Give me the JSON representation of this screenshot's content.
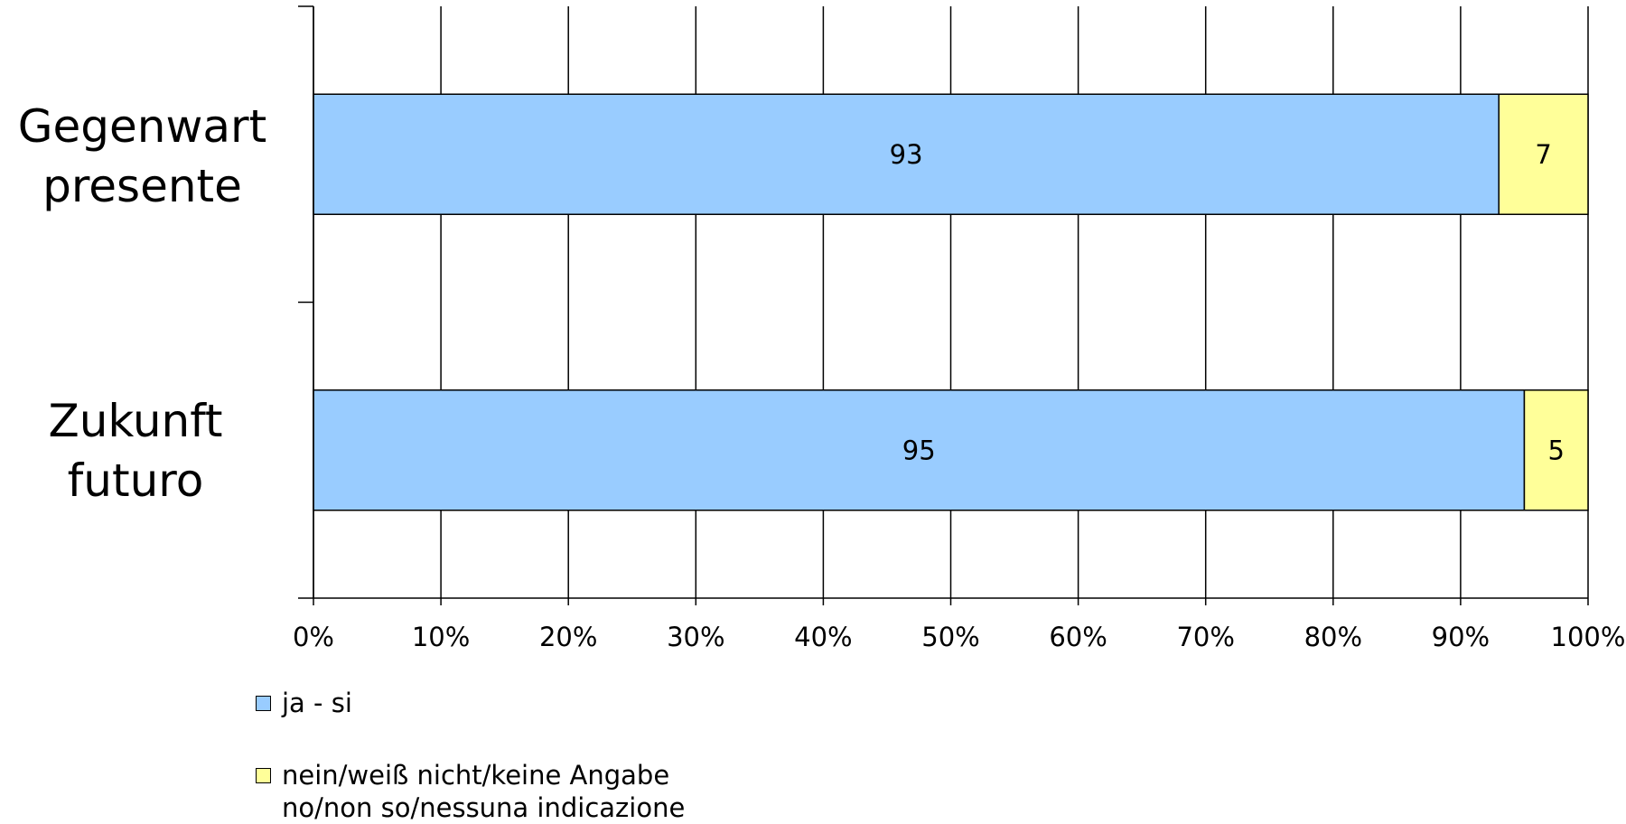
{
  "chart_data": {
    "type": "bar",
    "orientation": "horizontal",
    "stacked": "percent",
    "categories": [
      [
        "Gegenwart",
        "presente"
      ],
      [
        "Zukunft",
        "futuro"
      ]
    ],
    "series": [
      {
        "name": [
          "ja - si"
        ],
        "values": [
          93,
          95
        ],
        "color": "#99ccff"
      },
      {
        "name": [
          "nein/weiß nicht/keine Angabe",
          "no/non so/nessuna indicazione"
        ],
        "values": [
          7,
          5
        ],
        "color": "#ffff99"
      }
    ],
    "xticks": [
      "0%",
      "10%",
      "20%",
      "30%",
      "40%",
      "50%",
      "60%",
      "70%",
      "80%",
      "90%",
      "100%"
    ],
    "xlim": [
      0,
      100
    ],
    "grid": "vertical",
    "legend_position": "bottom-left"
  }
}
